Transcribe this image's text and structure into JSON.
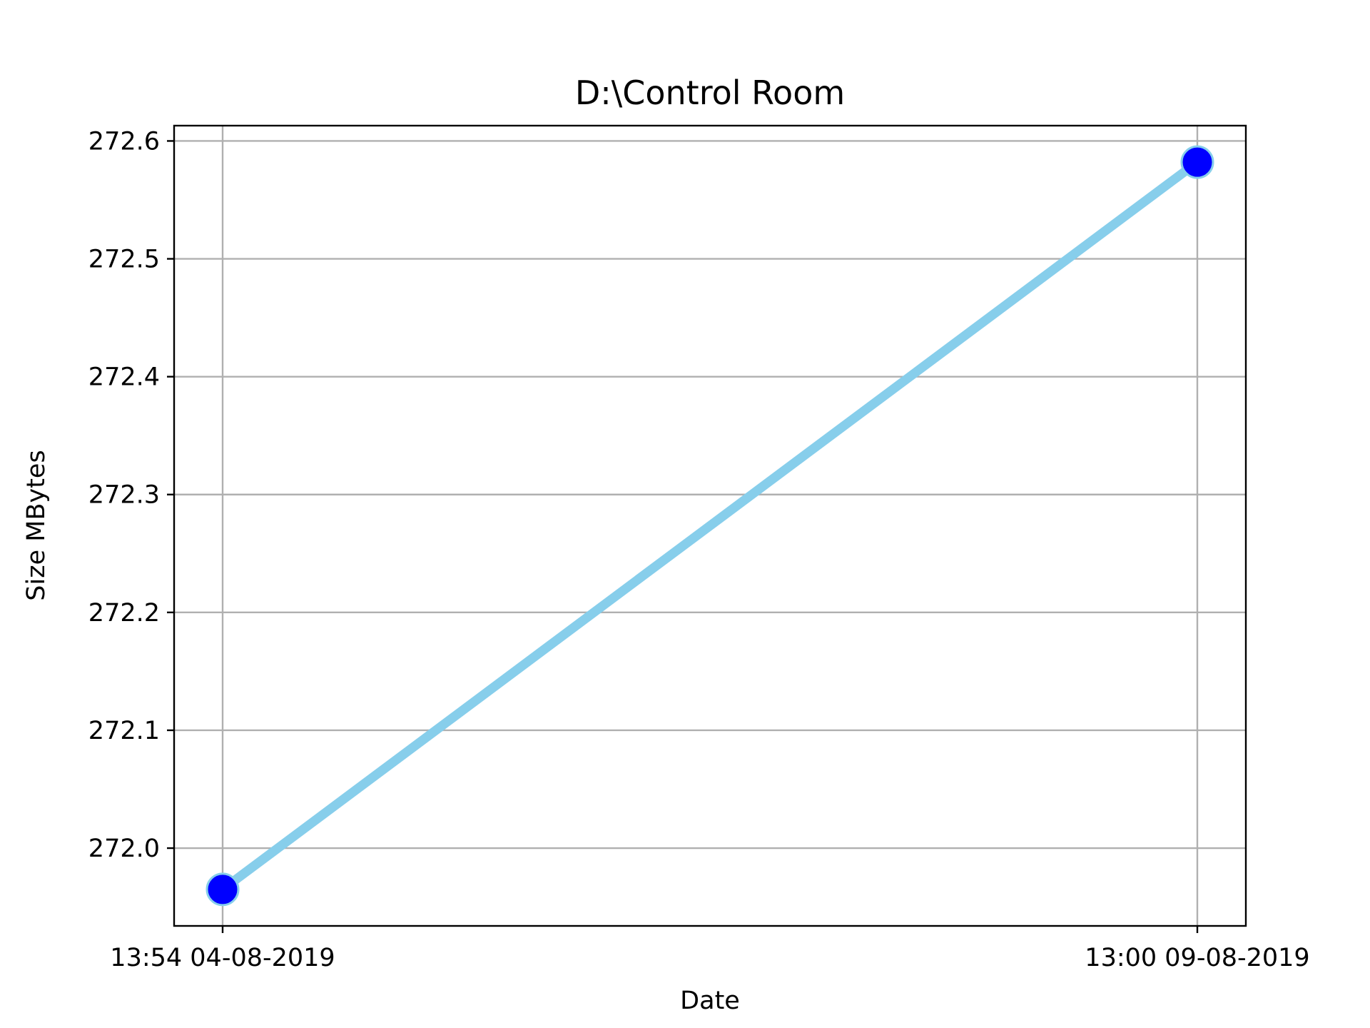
{
  "chart_data": {
    "type": "line",
    "title": "D:\\Control Room",
    "xlabel": "Date",
    "ylabel": "Size MBytes",
    "x_categories": [
      "13:54 04-08-2019",
      "13:00 09-08-2019"
    ],
    "series": [
      {
        "values": [
          271.965,
          272.582
        ],
        "line_color": "#87ceeb",
        "marker_color": "#0000ff",
        "marker_edge_color": "#87ceeb"
      }
    ],
    "yticks": [
      "272.0",
      "272.1",
      "272.2",
      "272.3",
      "272.4",
      "272.5",
      "272.6"
    ],
    "ylim": [
      271.934,
      272.613
    ],
    "grid": true,
    "legend": "none"
  }
}
